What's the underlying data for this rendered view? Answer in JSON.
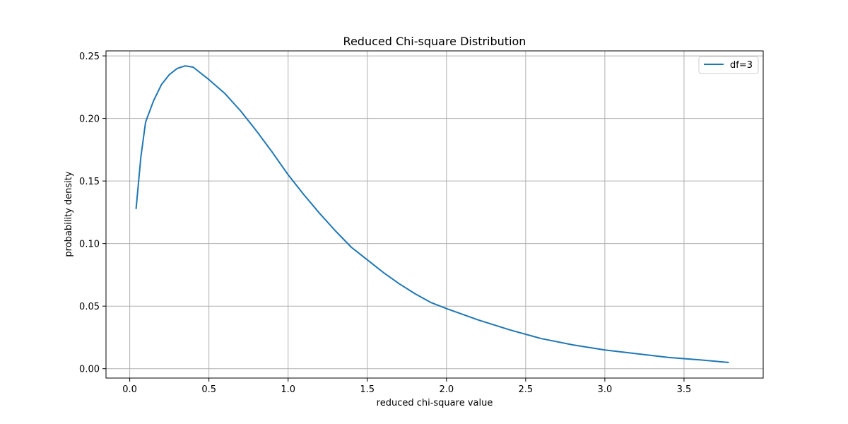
{
  "chart_data": {
    "type": "line",
    "title": "Reduced Chi-square Distribution",
    "xlabel": "reduced chi-square value",
    "ylabel": "probability density",
    "xlim": [
      -0.15,
      4.0
    ],
    "ylim": [
      -0.0075,
      0.254
    ],
    "xticks": [
      0.0,
      0.5,
      1.0,
      1.5,
      2.0,
      2.5,
      3.0,
      3.5
    ],
    "xtick_labels": [
      "0.0",
      "0.5",
      "1.0",
      "1.5",
      "2.0",
      "2.5",
      "3.0",
      "3.5"
    ],
    "yticks": [
      0.0,
      0.05,
      0.1,
      0.15,
      0.2,
      0.25
    ],
    "ytick_labels": [
      "0.00",
      "0.05",
      "0.10",
      "0.15",
      "0.20",
      "0.25"
    ],
    "grid": true,
    "legend_position": "top-right",
    "series": [
      {
        "name": "df=3",
        "color": "#1f77b4",
        "x": [
          0.04,
          0.07,
          0.1,
          0.15,
          0.2,
          0.25,
          0.3,
          0.35,
          0.4,
          0.5,
          0.6,
          0.7,
          0.8,
          0.9,
          1.0,
          1.1,
          1.2,
          1.3,
          1.4,
          1.5,
          1.6,
          1.7,
          1.8,
          1.9,
          2.0,
          2.2,
          2.4,
          2.6,
          2.8,
          3.0,
          3.2,
          3.4,
          3.6,
          3.78
        ],
        "y": [
          0.128,
          0.169,
          0.197,
          0.214,
          0.227,
          0.235,
          0.24,
          0.242,
          0.241,
          0.231,
          0.22,
          0.206,
          0.19,
          0.173,
          0.155,
          0.139,
          0.124,
          0.11,
          0.097,
          0.087,
          0.077,
          0.068,
          0.06,
          0.053,
          0.048,
          0.039,
          0.031,
          0.024,
          0.019,
          0.015,
          0.012,
          0.009,
          0.007,
          0.005
        ]
      }
    ]
  }
}
